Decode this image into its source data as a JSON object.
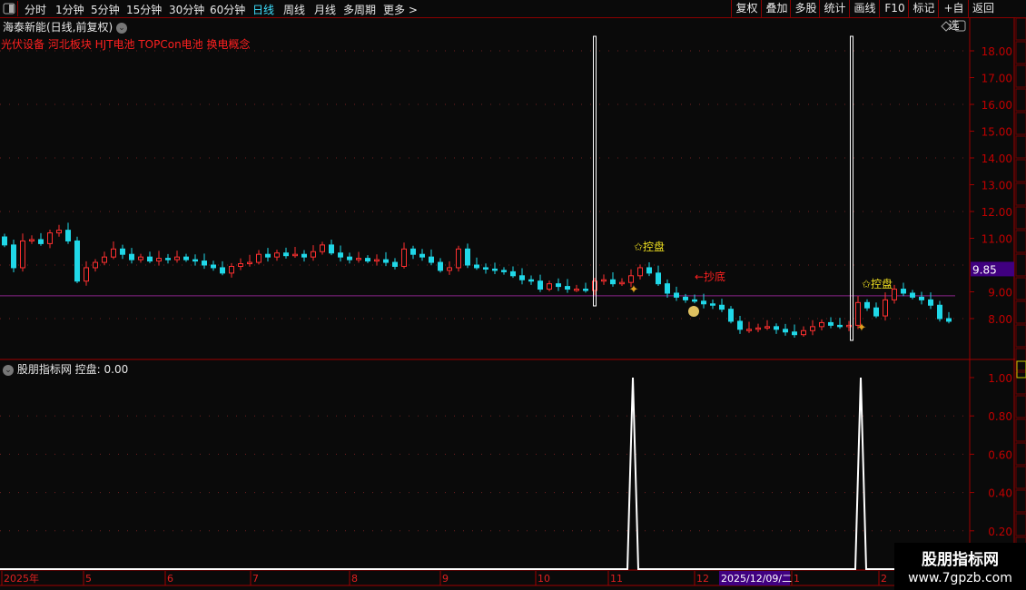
{
  "toolbar": {
    "periods": [
      "分时",
      "1分钟",
      "5分钟",
      "15分钟",
      "30分钟",
      "60分钟",
      "日线",
      "周线",
      "月线",
      "多周期",
      "更多 >"
    ],
    "active_period": "日线",
    "right_buttons": [
      "复权",
      "叠加",
      "多股",
      "统计",
      "画线",
      "F10",
      "标记",
      "+自选",
      "返回"
    ]
  },
  "header": {
    "title": "海泰新能(日线,前复权)",
    "concepts": "光伏设备 河北板块 HJT电池 TOPCon电池 换电概念"
  },
  "price_axis": {
    "ticks": [
      "18.00",
      "17.00",
      "16.00",
      "15.00",
      "14.00",
      "13.00",
      "12.00",
      "11.00",
      "9.00",
      "8.00"
    ],
    "current_price": "9.85"
  },
  "indicator": {
    "name": "股朋指标网",
    "label": "控盘: 0.00",
    "ticks": [
      "1.00",
      "0.80",
      "0.60",
      "0.40",
      "0.20"
    ]
  },
  "date_axis": {
    "labels": [
      "2025年",
      "5",
      "6",
      "7",
      "8",
      "9",
      "10",
      "11",
      "12",
      "1",
      "2"
    ],
    "cursor_date": "2025/12/09/二"
  },
  "annotations": {
    "control1": "✩控盘",
    "control2": "✩控盘",
    "bottom_fish": "←抄底"
  },
  "watermark": {
    "name": "股朋指标网",
    "url": "www.7gpzb.com"
  },
  "colors": {
    "up": "#ff3030",
    "down": "#20d8e8",
    "axis": "#c00000",
    "current_bg": "#400080",
    "reference_line": "#c030c0"
  },
  "chart_data": {
    "type": "candlestick",
    "ylim": [
      7,
      18.5
    ],
    "reference_price": 8.85,
    "closes": [
      10.75,
      9.9,
      10.9,
      10.95,
      10.8,
      11.2,
      11.3,
      10.9,
      9.4,
      9.9,
      10.1,
      10.3,
      10.6,
      10.4,
      10.2,
      10.3,
      10.15,
      10.25,
      10.2,
      10.3,
      10.2,
      10.15,
      10.0,
      9.9,
      9.7,
      9.95,
      10.05,
      10.1,
      10.4,
      10.3,
      10.45,
      10.35,
      10.4,
      10.3,
      10.5,
      10.75,
      10.45,
      10.3,
      10.2,
      10.25,
      10.15,
      10.2,
      10.1,
      9.95,
      10.6,
      10.4,
      10.3,
      10.1,
      9.8,
      9.9,
      10.6,
      10.0,
      9.9,
      9.85,
      9.8,
      9.75,
      9.6,
      9.45,
      9.4,
      9.1,
      9.3,
      9.2,
      9.1,
      9.1,
      9.05,
      9.4,
      9.45,
      9.3,
      9.35,
      9.6,
      9.9,
      9.7,
      9.3,
      8.95,
      8.8,
      8.7,
      8.65,
      8.55,
      8.5,
      8.35,
      7.9,
      7.6,
      7.6,
      7.65,
      7.7,
      7.6,
      7.5,
      7.4,
      7.55,
      7.7,
      7.85,
      7.75,
      7.7,
      7.75,
      8.6,
      8.4,
      8.1,
      8.7,
      9.1,
      8.95,
      8.8,
      8.7,
      8.5,
      8.0,
      7.9
    ],
    "signal_indices": [
      69,
      94
    ],
    "indicator_values_at_signals": [
      1.0,
      1.0
    ]
  }
}
